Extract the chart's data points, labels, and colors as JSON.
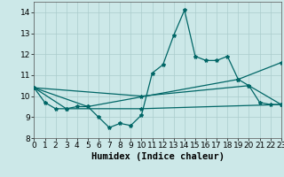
{
  "title": "",
  "xlabel": "Humidex (Indice chaleur)",
  "ylabel": "",
  "bg_color": "#cce8e8",
  "line_color": "#006666",
  "marker": "*",
  "series": [
    [
      0,
      10.4
    ],
    [
      1,
      9.7
    ],
    [
      2,
      9.4
    ],
    [
      3,
      9.4
    ],
    [
      4,
      9.5
    ],
    [
      5,
      9.5
    ],
    [
      6,
      9.0
    ],
    [
      7,
      8.5
    ],
    [
      8,
      8.7
    ],
    [
      9,
      8.6
    ],
    [
      10,
      9.1
    ],
    [
      11,
      11.1
    ],
    [
      12,
      11.5
    ],
    [
      13,
      12.9
    ],
    [
      14,
      14.1
    ],
    [
      15,
      11.9
    ],
    [
      16,
      11.7
    ],
    [
      17,
      11.7
    ],
    [
      18,
      11.9
    ],
    [
      19,
      10.8
    ],
    [
      20,
      10.5
    ],
    [
      21,
      9.7
    ],
    [
      22,
      9.6
    ],
    [
      23,
      9.6
    ]
  ],
  "series2": [
    [
      0,
      10.4
    ],
    [
      3,
      9.4
    ],
    [
      10,
      9.4
    ],
    [
      23,
      9.6
    ]
  ],
  "series3": [
    [
      0,
      10.4
    ],
    [
      5,
      9.5
    ],
    [
      19,
      10.8
    ],
    [
      23,
      11.6
    ]
  ],
  "series4": [
    [
      0,
      10.4
    ],
    [
      10,
      10.0
    ],
    [
      20,
      10.5
    ],
    [
      23,
      9.6
    ]
  ],
  "xlim": [
    0,
    23
  ],
  "ylim": [
    8,
    14.5
  ],
  "yticks": [
    8,
    9,
    10,
    11,
    12,
    13,
    14
  ],
  "xticks": [
    0,
    1,
    2,
    3,
    4,
    5,
    6,
    7,
    8,
    9,
    10,
    11,
    12,
    13,
    14,
    15,
    16,
    17,
    18,
    19,
    20,
    21,
    22,
    23
  ],
  "grid_color": "#aacccc",
  "xlabel_fontsize": 7.5,
  "tick_fontsize": 6.5
}
